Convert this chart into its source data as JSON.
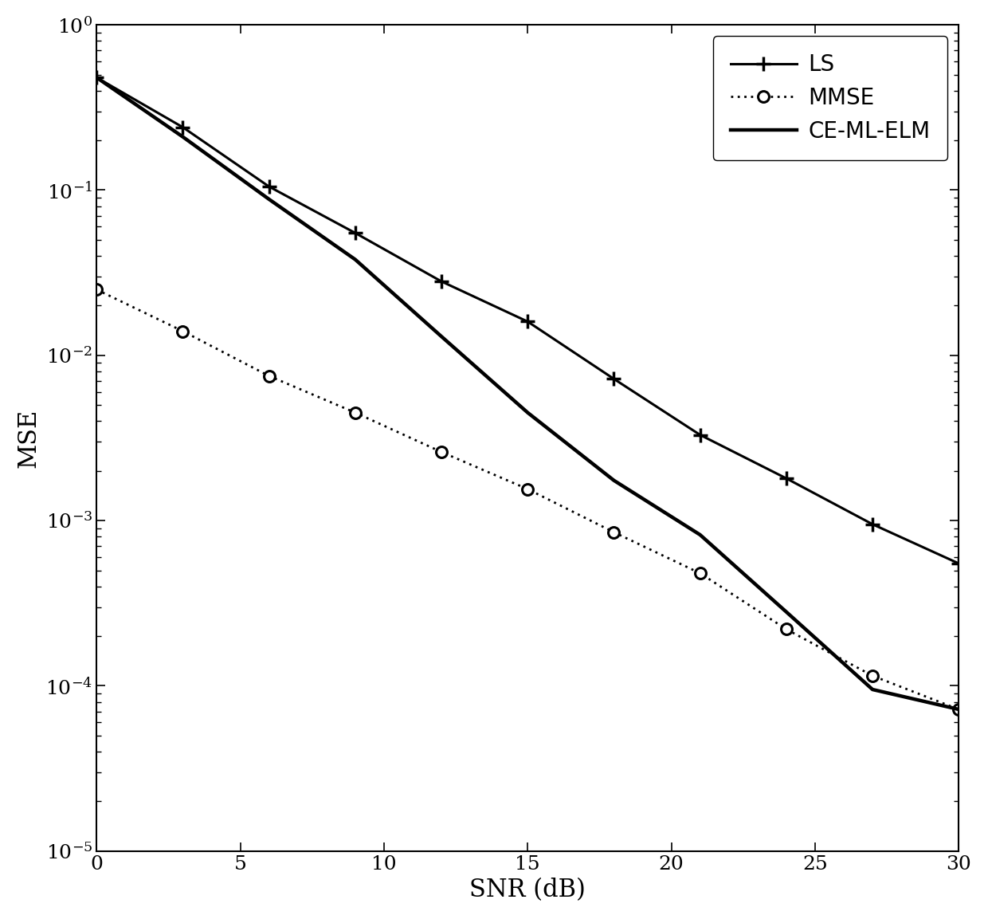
{
  "snr": [
    0,
    3,
    6,
    9,
    12,
    15,
    18,
    21,
    24,
    27,
    30
  ],
  "ls": [
    0.48,
    0.24,
    0.105,
    0.055,
    0.028,
    0.016,
    0.0072,
    0.0033,
    0.0018,
    0.00095,
    0.00055
  ],
  "mmse": [
    0.025,
    0.014,
    0.0075,
    0.0045,
    0.0026,
    0.00155,
    0.00085,
    0.00048,
    0.00022,
    0.000115,
    7.2e-05
  ],
  "ce_ml_elm": [
    0.48,
    0.21,
    0.088,
    0.038,
    0.013,
    0.0045,
    0.00175,
    0.00082,
    0.00028,
    9.5e-05,
    7.2e-05
  ],
  "xlabel": "SNR (dB)",
  "ylabel": "MSE",
  "xlim": [
    0,
    30
  ],
  "ylim_low": 1e-05,
  "ylim_high": 1.0,
  "legend_ls": "LS",
  "legend_mmse": "MMSE",
  "legend_cemlm": "CE-ML-ELM",
  "line_color": "#000000",
  "bg_color": "#ffffff",
  "tick_fontsize": 18,
  "label_fontsize": 22,
  "legend_fontsize": 20
}
